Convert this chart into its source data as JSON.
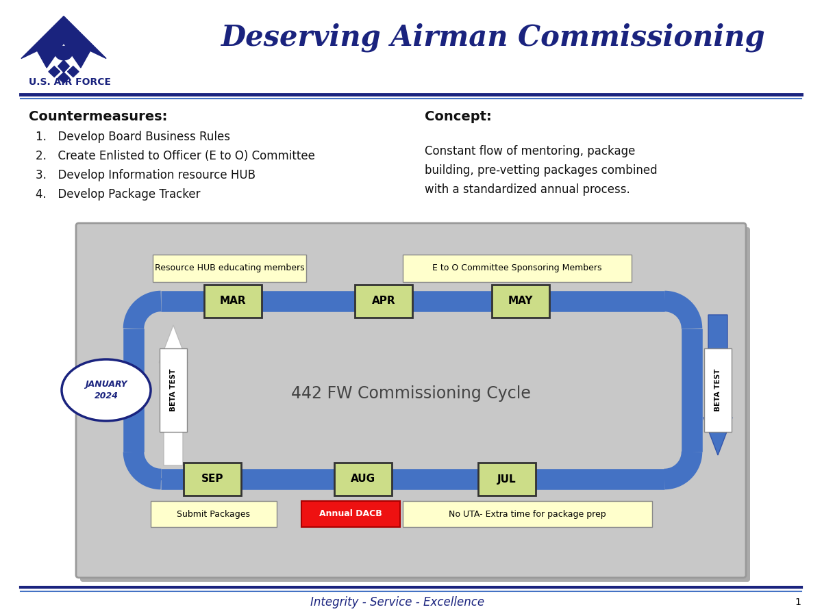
{
  "title": "Deserving Airman Commissioning",
  "footer": "Integrity - Service - Excellence",
  "footer_page": "1",
  "usaf_text": "U.S. AIR FORCE",
  "bg_color": "#ffffff",
  "navy_color": "#1a237e",
  "blue_color": "#4472c4",
  "countermeasures_title": "Countermeasures:",
  "countermeasures_items": [
    "Develop Board Business Rules",
    "Create Enlisted to Officer (E to O) Committee",
    "Develop Information resource HUB",
    "Develop Package Tracker"
  ],
  "concept_title": "Concept:",
  "concept_text": "Constant flow of mentoring, package\nbuilding, pre-vetting packages combined\nwith a standardized annual process.",
  "cycle_title": "442 FW Commissioning Cycle",
  "top_labels": [
    "Resource HUB educating members",
    "E to O Committee Sponsoring Members"
  ],
  "bottom_labels": [
    "Submit Packages",
    "Annual DACB",
    "No UTA- Extra time for package prep"
  ],
  "top_months": [
    "MAR",
    "APR",
    "MAY"
  ],
  "bottom_months": [
    "SEP",
    "AUG",
    "JUL"
  ],
  "jan_label": "JANUARY\n2024",
  "beta_test": "BETA TEST",
  "diagram_bg": "#c8c8c8",
  "month_box_color": "#ccdd88",
  "arrow_color": "#4472c4",
  "annual_dacb_color": "#ee1111",
  "label_box_color": "#ffffcc"
}
